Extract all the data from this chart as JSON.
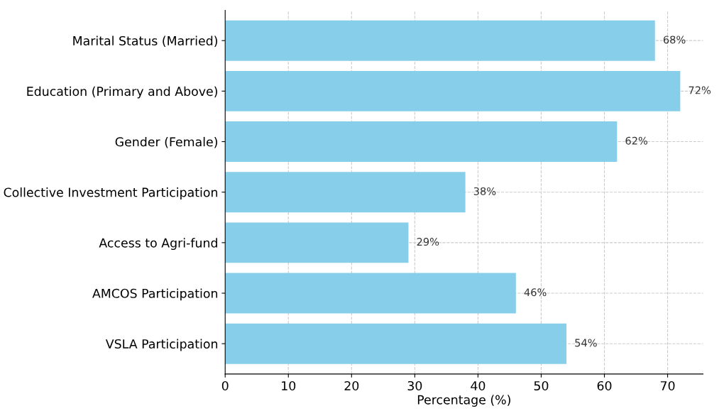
{
  "chart_data": {
    "type": "bar",
    "orientation": "horizontal",
    "xlabel": "Percentage (%)",
    "categories": [
      "Marital Status (Married)",
      "Education (Primary and Above)",
      "Gender (Female)",
      "Collective Investment Participation",
      "Access to Agri-fund",
      "AMCOS Participation",
      "VSLA Participation"
    ],
    "values": [
      68,
      72,
      62,
      38,
      29,
      46,
      54
    ],
    "value_labels": [
      "68%",
      "72%",
      "62%",
      "38%",
      "29%",
      "46%",
      "54%"
    ],
    "color": "#87ceeb",
    "xlim": [
      0,
      75.6
    ],
    "xticks": [
      0,
      10,
      20,
      30,
      40,
      50,
      60,
      70
    ],
    "grid": true
  }
}
